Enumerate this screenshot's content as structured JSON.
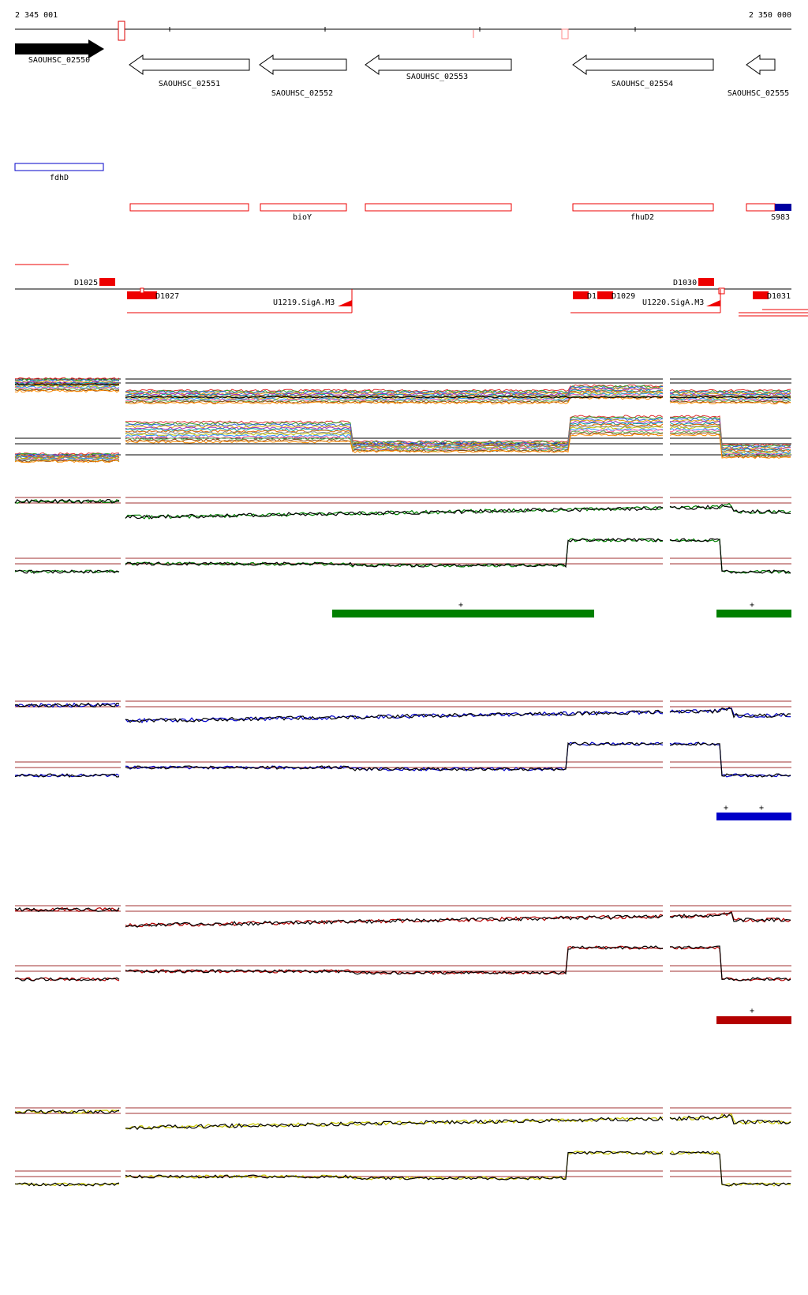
{
  "coordinates": {
    "start": "2 345 001",
    "end": "2 350 000"
  },
  "genes": [
    {
      "name": "SAOUHSC_02550",
      "strand": "+"
    },
    {
      "name": "SAOUHSC_02551",
      "strand": "-"
    },
    {
      "name": "SAOUHSC_02552",
      "strand": "-"
    },
    {
      "name": "SAOUHSC_02553",
      "strand": "-"
    },
    {
      "name": "SAOUHSC_02554",
      "strand": "-"
    },
    {
      "name": "SAOUHSC_02555",
      "strand": "-"
    }
  ],
  "annotations": [
    {
      "label": "fdhD"
    },
    {
      "label": "bioY"
    },
    {
      "label": "fhuD2"
    },
    {
      "label": "S983"
    }
  ],
  "segments": [
    {
      "label": "D1025"
    },
    {
      "label": "D1027"
    },
    {
      "label": "D1029"
    },
    {
      "label": "D1030"
    },
    {
      "label": "D1031"
    },
    {
      "label": "D1"
    }
  ],
  "transcription_units": [
    {
      "label": "U1219.SigA.M3"
    },
    {
      "label": "U1220.SigA.M3"
    }
  ],
  "expression_panels": [
    {
      "color": "#008000",
      "plus_marks": [
        "+",
        "+"
      ]
    },
    {
      "color": "#0000c8",
      "plus_marks": [
        "+",
        "+"
      ]
    },
    {
      "color": "#b40000",
      "plus_marks": [
        "+"
      ]
    },
    {
      "color": "#c8c800",
      "plus_marks": []
    }
  ],
  "colors": {
    "accent_red": "#ff0000",
    "annotation_blue": "#0000c8",
    "threshold": "#a03030"
  }
}
